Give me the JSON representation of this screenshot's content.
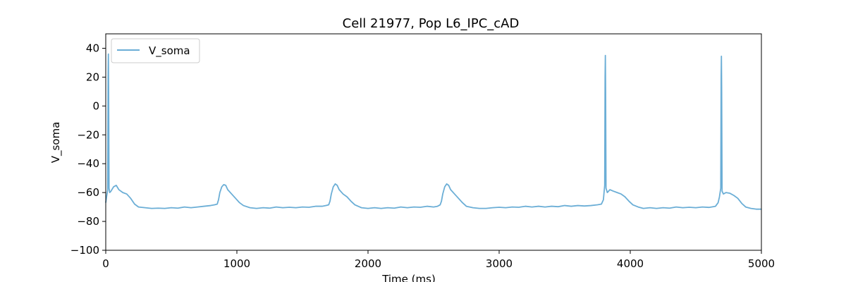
{
  "chart_data": {
    "type": "line",
    "title": "Cell 21977, Pop L6_IPC_cAD",
    "xlabel": "Time (ms)",
    "ylabel": "V_soma",
    "xlim": [
      0,
      5000
    ],
    "ylim": [
      -100,
      50
    ],
    "xticks": [
      0,
      1000,
      2000,
      3000,
      4000,
      5000
    ],
    "yticks": [
      -100,
      -80,
      -60,
      -40,
      -20,
      0,
      20,
      40
    ],
    "grid": false,
    "legend_position": "top-left",
    "series": [
      {
        "name": "V_soma",
        "color": "#6baed6",
        "points": [
          [
            0,
            -67
          ],
          [
            8,
            -62
          ],
          [
            15,
            -58
          ],
          [
            18,
            20
          ],
          [
            20,
            36
          ],
          [
            22,
            10
          ],
          [
            25,
            -57
          ],
          [
            30,
            -60
          ],
          [
            40,
            -59
          ],
          [
            60,
            -56
          ],
          [
            80,
            -55
          ],
          [
            100,
            -58
          ],
          [
            130,
            -60
          ],
          [
            160,
            -61
          ],
          [
            190,
            -64
          ],
          [
            220,
            -68
          ],
          [
            250,
            -70
          ],
          [
            300,
            -70.5
          ],
          [
            350,
            -71
          ],
          [
            400,
            -70.8
          ],
          [
            450,
            -71
          ],
          [
            500,
            -70.5
          ],
          [
            550,
            -70.8
          ],
          [
            600,
            -70
          ],
          [
            650,
            -70.5
          ],
          [
            700,
            -70
          ],
          [
            750,
            -69.5
          ],
          [
            800,
            -69
          ],
          [
            830,
            -68.5
          ],
          [
            850,
            -68
          ],
          [
            860,
            -65
          ],
          [
            870,
            -60
          ],
          [
            885,
            -56
          ],
          [
            900,
            -54.5
          ],
          [
            915,
            -55
          ],
          [
            930,
            -58
          ],
          [
            960,
            -61
          ],
          [
            990,
            -64
          ],
          [
            1020,
            -67
          ],
          [
            1050,
            -69
          ],
          [
            1100,
            -70.5
          ],
          [
            1150,
            -71
          ],
          [
            1200,
            -70.5
          ],
          [
            1250,
            -70.8
          ],
          [
            1300,
            -70
          ],
          [
            1350,
            -70.5
          ],
          [
            1400,
            -70.2
          ],
          [
            1450,
            -70.5
          ],
          [
            1500,
            -70
          ],
          [
            1550,
            -70.2
          ],
          [
            1600,
            -69.5
          ],
          [
            1650,
            -69.5
          ],
          [
            1680,
            -69
          ],
          [
            1700,
            -68.5
          ],
          [
            1710,
            -66
          ],
          [
            1720,
            -61
          ],
          [
            1735,
            -56
          ],
          [
            1750,
            -54
          ],
          [
            1765,
            -55
          ],
          [
            1780,
            -58
          ],
          [
            1810,
            -61
          ],
          [
            1840,
            -63
          ],
          [
            1870,
            -66
          ],
          [
            1900,
            -68.5
          ],
          [
            1950,
            -70.5
          ],
          [
            2000,
            -71
          ],
          [
            2050,
            -70.5
          ],
          [
            2100,
            -71
          ],
          [
            2150,
            -70.5
          ],
          [
            2200,
            -70.8
          ],
          [
            2250,
            -70
          ],
          [
            2300,
            -70.5
          ],
          [
            2350,
            -70
          ],
          [
            2400,
            -70.2
          ],
          [
            2450,
            -69.5
          ],
          [
            2500,
            -70
          ],
          [
            2530,
            -69.5
          ],
          [
            2550,
            -68.5
          ],
          [
            2560,
            -66
          ],
          [
            2570,
            -61
          ],
          [
            2585,
            -56
          ],
          [
            2600,
            -54
          ],
          [
            2615,
            -55
          ],
          [
            2630,
            -58
          ],
          [
            2660,
            -61
          ],
          [
            2690,
            -64
          ],
          [
            2720,
            -67
          ],
          [
            2750,
            -69.5
          ],
          [
            2800,
            -70.5
          ],
          [
            2850,
            -71
          ],
          [
            2900,
            -71
          ],
          [
            2950,
            -70.5
          ],
          [
            3000,
            -70.2
          ],
          [
            3050,
            -70.5
          ],
          [
            3100,
            -70
          ],
          [
            3150,
            -70.2
          ],
          [
            3200,
            -69.5
          ],
          [
            3250,
            -70
          ],
          [
            3300,
            -69.5
          ],
          [
            3350,
            -70
          ],
          [
            3400,
            -69.5
          ],
          [
            3450,
            -69.8
          ],
          [
            3500,
            -69
          ],
          [
            3550,
            -69.5
          ],
          [
            3600,
            -69
          ],
          [
            3650,
            -69.3
          ],
          [
            3700,
            -69
          ],
          [
            3750,
            -68.5
          ],
          [
            3780,
            -68
          ],
          [
            3795,
            -65
          ],
          [
            3805,
            -55
          ],
          [
            3808,
            20
          ],
          [
            3810,
            35
          ],
          [
            3812,
            10
          ],
          [
            3815,
            -57
          ],
          [
            3825,
            -60
          ],
          [
            3845,
            -58
          ],
          [
            3870,
            -59
          ],
          [
            3900,
            -60
          ],
          [
            3930,
            -61
          ],
          [
            3960,
            -63
          ],
          [
            3990,
            -66
          ],
          [
            4020,
            -68.5
          ],
          [
            4060,
            -70
          ],
          [
            4100,
            -71
          ],
          [
            4150,
            -70.5
          ],
          [
            4200,
            -71
          ],
          [
            4250,
            -70.5
          ],
          [
            4300,
            -70.8
          ],
          [
            4350,
            -70
          ],
          [
            4400,
            -70.5
          ],
          [
            4450,
            -70.2
          ],
          [
            4500,
            -70.5
          ],
          [
            4550,
            -70
          ],
          [
            4600,
            -70.3
          ],
          [
            4650,
            -69.5
          ],
          [
            4670,
            -67
          ],
          [
            4680,
            -63
          ],
          [
            4690,
            -57
          ],
          [
            4693,
            20
          ],
          [
            4695,
            34.5
          ],
          [
            4697,
            10
          ],
          [
            4700,
            -59
          ],
          [
            4710,
            -61
          ],
          [
            4730,
            -60
          ],
          [
            4760,
            -60.5
          ],
          [
            4790,
            -62
          ],
          [
            4820,
            -64
          ],
          [
            4850,
            -67.5
          ],
          [
            4880,
            -70
          ],
          [
            4920,
            -71
          ],
          [
            4960,
            -71.5
          ],
          [
            5000,
            -71.5
          ]
        ]
      }
    ]
  }
}
